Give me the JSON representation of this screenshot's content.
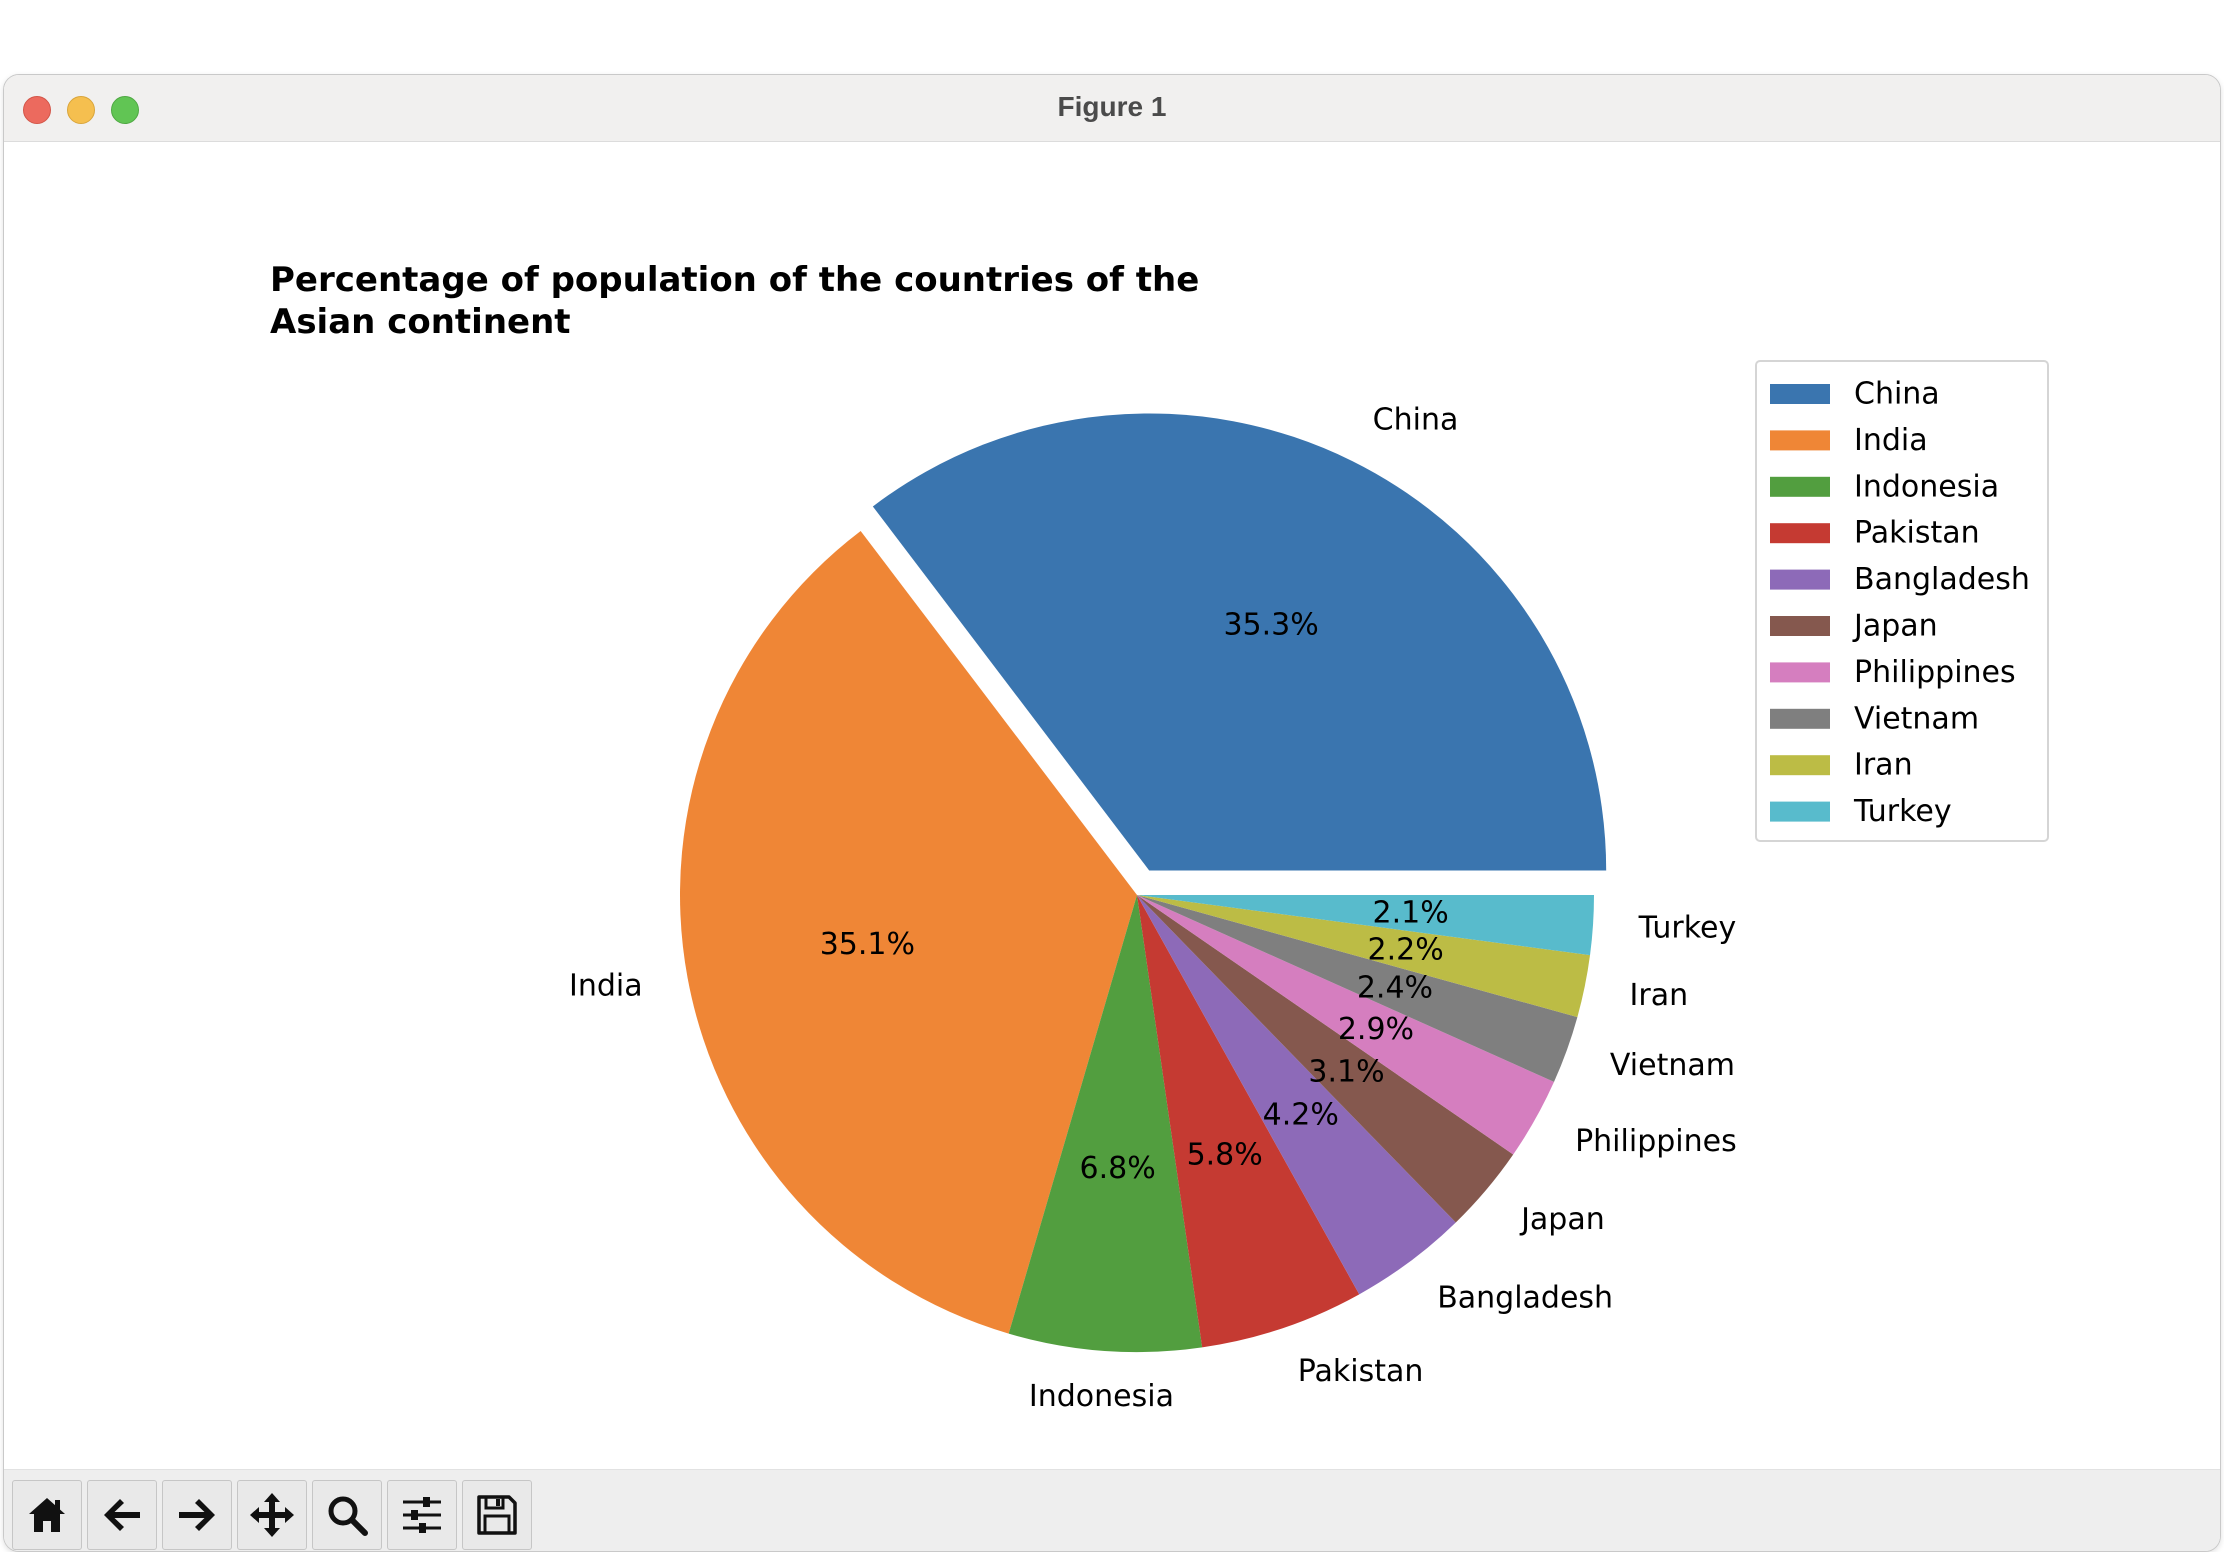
{
  "window": {
    "title": "Figure 1"
  },
  "toolbar": {
    "buttons": [
      {
        "icon": "home-icon",
        "tooltip": "Reset original view"
      },
      {
        "icon": "back-arrow-icon",
        "tooltip": "Back"
      },
      {
        "icon": "forward-arrow-icon",
        "tooltip": "Forward"
      },
      {
        "icon": "pan-move-icon",
        "tooltip": "Pan"
      },
      {
        "icon": "zoom-magnifier-icon",
        "tooltip": "Zoom"
      },
      {
        "icon": "configure-sliders-icon",
        "tooltip": "Configure subplots"
      },
      {
        "icon": "save-floppy-icon",
        "tooltip": "Save"
      }
    ]
  },
  "chart_data": {
    "type": "pie",
    "title": "Percentage of population of the countries of the Asian continent",
    "title_lines": [
      "Percentage of population of the countries of the",
      "Asian continent"
    ],
    "categories": [
      "China",
      "India",
      "Indonesia",
      "Pakistan",
      "Bangladesh",
      "Japan",
      "Philippines",
      "Vietnam",
      "Iran",
      "Turkey"
    ],
    "values": [
      35.3,
      35.1,
      6.8,
      5.8,
      4.2,
      3.1,
      2.9,
      2.4,
      2.2,
      2.1
    ],
    "value_labels": [
      "35.3%",
      "35.1%",
      "6.8%",
      "5.8%",
      "4.2%",
      "3.1%",
      "2.9%",
      "2.4%",
      "2.2%",
      "2.1%"
    ],
    "colors": [
      "#3a75af",
      "#ef8636",
      "#529e3f",
      "#c53a32",
      "#8d6ab8",
      "#85584e",
      "#d57ebf",
      "#7f7f7f",
      "#bcbc45",
      "#58bbcc"
    ],
    "explode": [
      0.06,
      0,
      0,
      0,
      0,
      0,
      0,
      0,
      0,
      0
    ],
    "start_angle_deg": 0,
    "direction": "counterclockwise",
    "legend": {
      "location": "upper right",
      "entries": [
        "China",
        "India",
        "Indonesia",
        "Pakistan",
        "Bangladesh",
        "Japan",
        "Philippines",
        "Vietnam",
        "Iran",
        "Turkey"
      ]
    }
  }
}
